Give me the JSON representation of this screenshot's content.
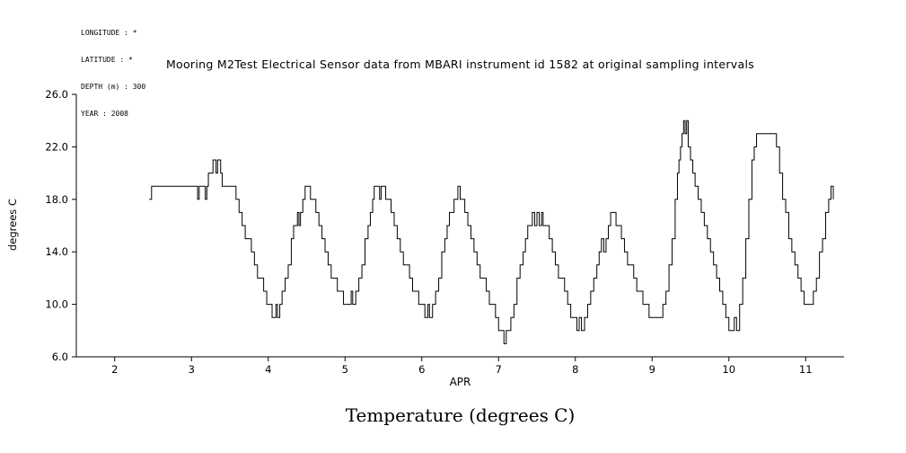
{
  "meta": {
    "lines": [
      "LONGITUDE : *",
      "LATITUDE : *",
      "DEPTH (m) : 300",
      "YEAR : 2008"
    ]
  },
  "title": "Mooring M2Test Electrical Sensor data from MBARI instrument id 1582 at original sampling intervals",
  "caption": "Temperature (degrees C)",
  "chart_data": {
    "type": "line",
    "title": "Mooring M2Test Electrical Sensor data from MBARI instrument id 1582 at original sampling intervals",
    "xlabel": "APR",
    "ylabel": "degrees C",
    "xlim": [
      1.5,
      11.5
    ],
    "ylim": [
      6.0,
      26.0
    ],
    "xticks": [
      2,
      3,
      4,
      5,
      6,
      7,
      8,
      9,
      10,
      11
    ],
    "xtick_labels": [
      "2",
      "3",
      "4",
      "5",
      "6",
      "7",
      "8",
      "9",
      "10",
      "11"
    ],
    "yticks": [
      6.0,
      10.0,
      14.0,
      18.0,
      22.0,
      26.0
    ],
    "ytick_labels": [
      "6.0",
      "10.0",
      "14.0",
      "18.0",
      "22.0",
      "26.0"
    ],
    "grid": false,
    "legend": "none",
    "line_color": "#000000",
    "step_interpolation": true,
    "series": [
      {
        "name": "temperature",
        "points": [
          [
            2.45,
            18
          ],
          [
            2.48,
            19
          ],
          [
            2.55,
            19
          ],
          [
            2.6,
            19
          ],
          [
            2.65,
            19
          ],
          [
            2.7,
            19
          ],
          [
            2.75,
            19
          ],
          [
            2.8,
            19
          ],
          [
            2.85,
            19
          ],
          [
            2.9,
            19
          ],
          [
            2.95,
            19
          ],
          [
            3.0,
            19
          ],
          [
            3.05,
            19
          ],
          [
            3.08,
            18
          ],
          [
            3.1,
            19
          ],
          [
            3.15,
            19
          ],
          [
            3.18,
            18
          ],
          [
            3.2,
            19
          ],
          [
            3.22,
            20
          ],
          [
            3.26,
            20
          ],
          [
            3.28,
            21
          ],
          [
            3.32,
            20
          ],
          [
            3.34,
            21
          ],
          [
            3.38,
            20
          ],
          [
            3.4,
            19
          ],
          [
            3.45,
            19
          ],
          [
            3.5,
            19
          ],
          [
            3.55,
            19
          ],
          [
            3.58,
            18
          ],
          [
            3.62,
            17
          ],
          [
            3.66,
            16
          ],
          [
            3.7,
            15
          ],
          [
            3.74,
            15
          ],
          [
            3.78,
            14
          ],
          [
            3.82,
            13
          ],
          [
            3.86,
            12
          ],
          [
            3.9,
            12
          ],
          [
            3.94,
            11
          ],
          [
            3.98,
            10
          ],
          [
            4.02,
            10
          ],
          [
            4.05,
            9
          ],
          [
            4.08,
            9
          ],
          [
            4.1,
            10
          ],
          [
            4.12,
            9
          ],
          [
            4.15,
            10
          ],
          [
            4.18,
            11
          ],
          [
            4.22,
            12
          ],
          [
            4.26,
            13
          ],
          [
            4.3,
            15
          ],
          [
            4.33,
            16
          ],
          [
            4.36,
            16
          ],
          [
            4.38,
            17
          ],
          [
            4.4,
            16
          ],
          [
            4.42,
            17
          ],
          [
            4.45,
            18
          ],
          [
            4.48,
            19
          ],
          [
            4.5,
            19
          ],
          [
            4.53,
            19
          ],
          [
            4.55,
            18
          ],
          [
            4.58,
            18
          ],
          [
            4.62,
            17
          ],
          [
            4.66,
            16
          ],
          [
            4.7,
            15
          ],
          [
            4.74,
            14
          ],
          [
            4.78,
            13
          ],
          [
            4.82,
            12
          ],
          [
            4.86,
            12
          ],
          [
            4.9,
            11
          ],
          [
            4.94,
            11
          ],
          [
            4.98,
            10
          ],
          [
            5.02,
            10
          ],
          [
            5.05,
            10
          ],
          [
            5.08,
            11
          ],
          [
            5.1,
            10
          ],
          [
            5.14,
            11
          ],
          [
            5.18,
            12
          ],
          [
            5.22,
            13
          ],
          [
            5.26,
            15
          ],
          [
            5.3,
            16
          ],
          [
            5.33,
            17
          ],
          [
            5.36,
            18
          ],
          [
            5.38,
            19
          ],
          [
            5.42,
            19
          ],
          [
            5.45,
            18
          ],
          [
            5.47,
            19
          ],
          [
            5.5,
            19
          ],
          [
            5.53,
            18
          ],
          [
            5.56,
            18
          ],
          [
            5.6,
            17
          ],
          [
            5.64,
            16
          ],
          [
            5.68,
            15
          ],
          [
            5.72,
            14
          ],
          [
            5.76,
            13
          ],
          [
            5.8,
            13
          ],
          [
            5.84,
            12
          ],
          [
            5.88,
            11
          ],
          [
            5.92,
            11
          ],
          [
            5.96,
            10
          ],
          [
            6.0,
            10
          ],
          [
            6.04,
            9
          ],
          [
            6.08,
            10
          ],
          [
            6.1,
            9
          ],
          [
            6.14,
            10
          ],
          [
            6.18,
            11
          ],
          [
            6.22,
            12
          ],
          [
            6.26,
            14
          ],
          [
            6.3,
            15
          ],
          [
            6.33,
            16
          ],
          [
            6.36,
            17
          ],
          [
            6.39,
            17
          ],
          [
            6.42,
            18
          ],
          [
            6.45,
            18
          ],
          [
            6.47,
            19
          ],
          [
            6.5,
            18
          ],
          [
            6.53,
            18
          ],
          [
            6.56,
            17
          ],
          [
            6.6,
            16
          ],
          [
            6.64,
            15
          ],
          [
            6.68,
            14
          ],
          [
            6.72,
            13
          ],
          [
            6.76,
            12
          ],
          [
            6.8,
            12
          ],
          [
            6.84,
            11
          ],
          [
            6.88,
            10
          ],
          [
            6.92,
            10
          ],
          [
            6.96,
            9
          ],
          [
            7.0,
            8
          ],
          [
            7.04,
            8
          ],
          [
            7.07,
            7
          ],
          [
            7.1,
            8
          ],
          [
            7.13,
            8
          ],
          [
            7.16,
            9
          ],
          [
            7.2,
            10
          ],
          [
            7.24,
            12
          ],
          [
            7.28,
            13
          ],
          [
            7.32,
            14
          ],
          [
            7.35,
            15
          ],
          [
            7.38,
            16
          ],
          [
            7.41,
            16
          ],
          [
            7.44,
            17
          ],
          [
            7.47,
            16
          ],
          [
            7.5,
            17
          ],
          [
            7.53,
            16
          ],
          [
            7.56,
            17
          ],
          [
            7.58,
            16
          ],
          [
            7.62,
            16
          ],
          [
            7.66,
            15
          ],
          [
            7.7,
            14
          ],
          [
            7.74,
            13
          ],
          [
            7.78,
            12
          ],
          [
            7.82,
            12
          ],
          [
            7.86,
            11
          ],
          [
            7.9,
            10
          ],
          [
            7.94,
            9
          ],
          [
            7.98,
            9
          ],
          [
            8.02,
            8
          ],
          [
            8.05,
            9
          ],
          [
            8.08,
            8
          ],
          [
            8.12,
            9
          ],
          [
            8.16,
            10
          ],
          [
            8.2,
            11
          ],
          [
            8.24,
            12
          ],
          [
            8.28,
            13
          ],
          [
            8.31,
            14
          ],
          [
            8.34,
            15
          ],
          [
            8.37,
            14
          ],
          [
            8.4,
            15
          ],
          [
            8.43,
            16
          ],
          [
            8.46,
            17
          ],
          [
            8.5,
            17
          ],
          [
            8.53,
            16
          ],
          [
            8.56,
            16
          ],
          [
            8.6,
            15
          ],
          [
            8.64,
            14
          ],
          [
            8.68,
            13
          ],
          [
            8.72,
            13
          ],
          [
            8.76,
            12
          ],
          [
            8.8,
            11
          ],
          [
            8.84,
            11
          ],
          [
            8.88,
            10
          ],
          [
            8.92,
            10
          ],
          [
            8.96,
            9
          ],
          [
            9.0,
            9
          ],
          [
            9.05,
            9
          ],
          [
            9.1,
            9
          ],
          [
            9.14,
            10
          ],
          [
            9.18,
            11
          ],
          [
            9.22,
            13
          ],
          [
            9.26,
            15
          ],
          [
            9.3,
            18
          ],
          [
            9.33,
            20
          ],
          [
            9.35,
            21
          ],
          [
            9.37,
            22
          ],
          [
            9.39,
            23
          ],
          [
            9.41,
            24
          ],
          [
            9.43,
            23
          ],
          [
            9.45,
            24
          ],
          [
            9.47,
            22
          ],
          [
            9.5,
            21
          ],
          [
            9.53,
            20
          ],
          [
            9.56,
            19
          ],
          [
            9.6,
            18
          ],
          [
            9.64,
            17
          ],
          [
            9.68,
            16
          ],
          [
            9.72,
            15
          ],
          [
            9.76,
            14
          ],
          [
            9.8,
            13
          ],
          [
            9.84,
            12
          ],
          [
            9.88,
            11
          ],
          [
            9.92,
            10
          ],
          [
            9.96,
            9
          ],
          [
            10.0,
            8
          ],
          [
            10.04,
            8
          ],
          [
            10.07,
            9
          ],
          [
            10.1,
            8
          ],
          [
            10.14,
            10
          ],
          [
            10.18,
            12
          ],
          [
            10.22,
            15
          ],
          [
            10.26,
            18
          ],
          [
            10.3,
            21
          ],
          [
            10.33,
            22
          ],
          [
            10.36,
            23
          ],
          [
            10.4,
            23
          ],
          [
            10.45,
            23
          ],
          [
            10.5,
            23
          ],
          [
            10.55,
            23
          ],
          [
            10.58,
            23
          ],
          [
            10.62,
            22
          ],
          [
            10.66,
            20
          ],
          [
            10.7,
            18
          ],
          [
            10.74,
            17
          ],
          [
            10.78,
            15
          ],
          [
            10.82,
            14
          ],
          [
            10.86,
            13
          ],
          [
            10.9,
            12
          ],
          [
            10.94,
            11
          ],
          [
            10.98,
            10
          ],
          [
            11.02,
            10
          ],
          [
            11.06,
            10
          ],
          [
            11.1,
            11
          ],
          [
            11.14,
            12
          ],
          [
            11.18,
            14
          ],
          [
            11.22,
            15
          ],
          [
            11.26,
            17
          ],
          [
            11.3,
            18
          ],
          [
            11.33,
            19
          ],
          [
            11.36,
            18
          ]
        ]
      }
    ]
  }
}
